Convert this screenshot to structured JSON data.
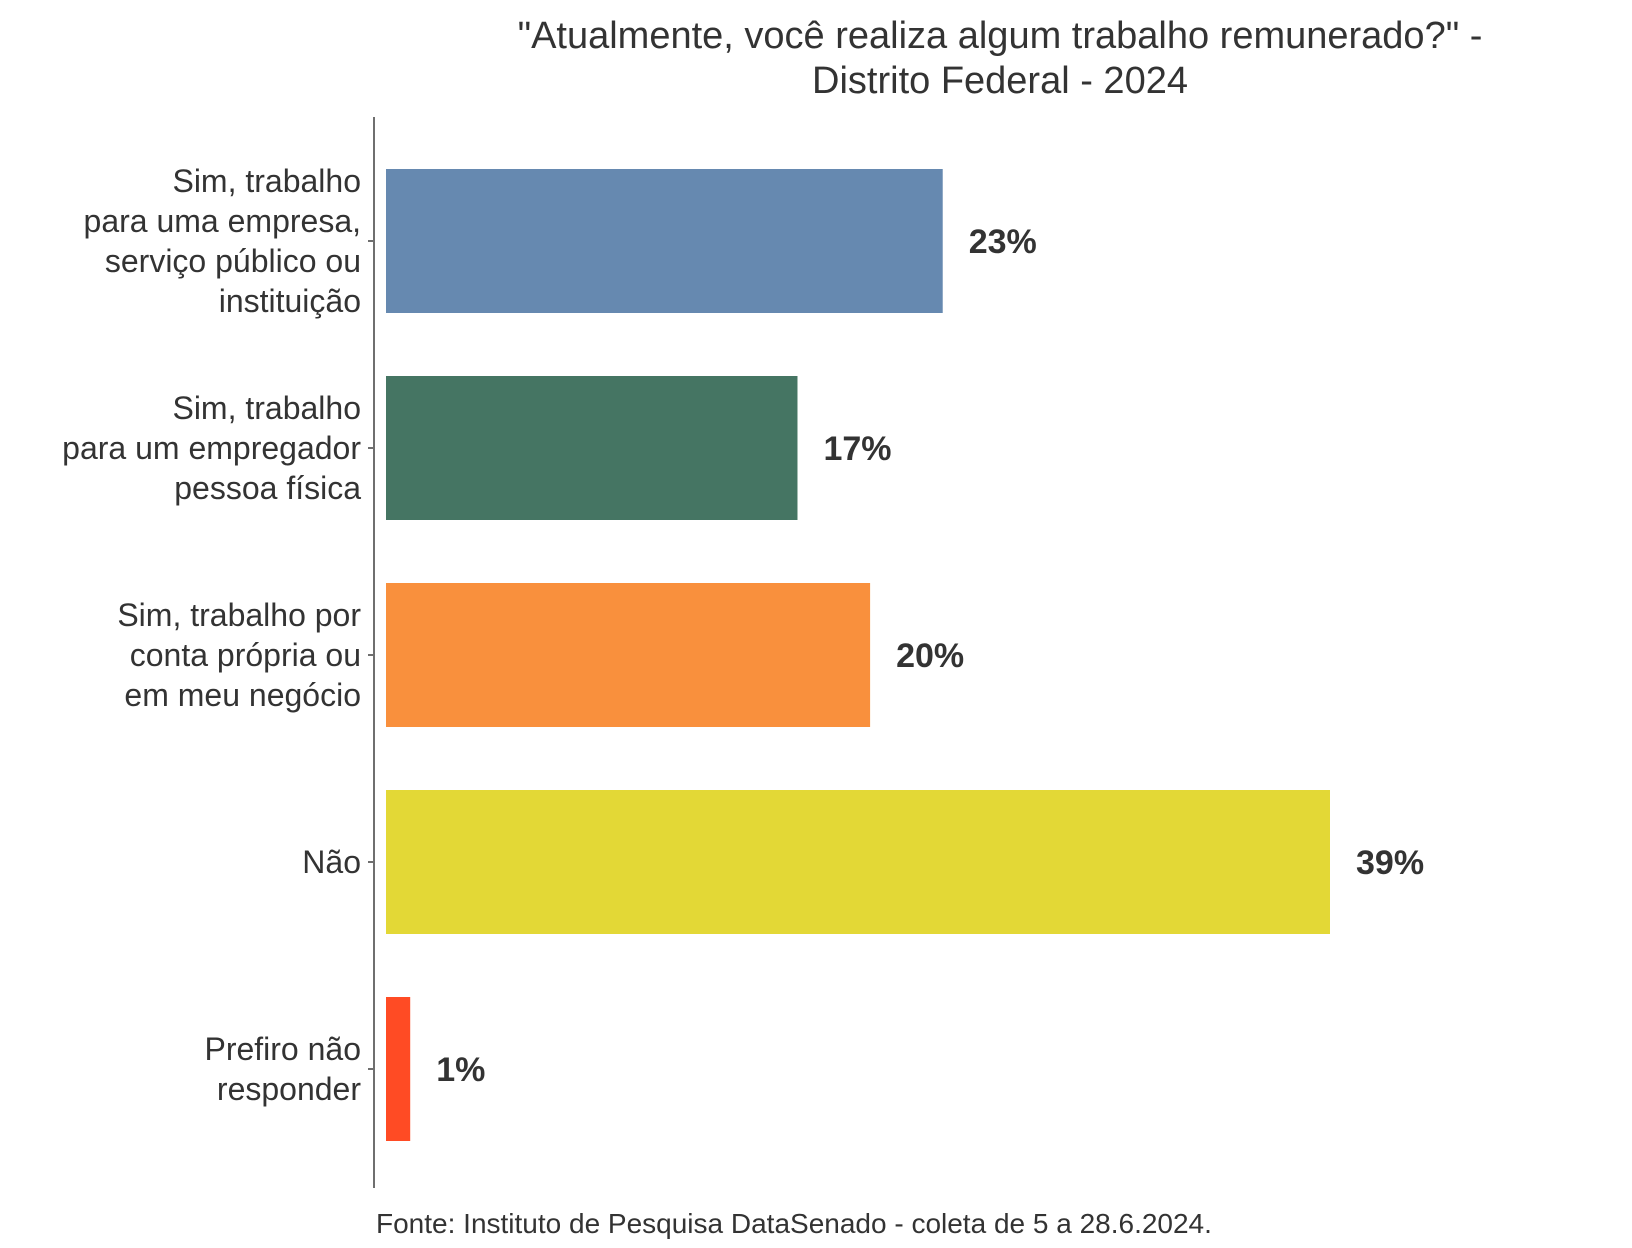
{
  "chart_data": {
    "type": "bar",
    "orientation": "horizontal",
    "title_lines": [
      "\"Atualmente, você realiza algum trabalho remunerado?\" -",
      "Distrito Federal - 2024"
    ],
    "categories": [
      [
        "Sim, trabalho",
        "para uma empresa,",
        "serviço público ou",
        "instituição"
      ],
      [
        "Sim, trabalho",
        "para um empregador",
        "pessoa física"
      ],
      [
        "Sim, trabalho por",
        "conta própria ou",
        "em meu negócio"
      ],
      [
        "Não"
      ],
      [
        "Prefiro não",
        "responder"
      ]
    ],
    "values": [
      23,
      17,
      20,
      39,
      1
    ],
    "value_labels": [
      "23%",
      "17%",
      "20%",
      "39%",
      "1%"
    ],
    "colors": [
      "#6689B0",
      "#457563",
      "#F9903D",
      "#E3D836",
      "#FF4B24"
    ],
    "xlim": [
      0,
      39
    ],
    "xlabel": "",
    "ylabel": "",
    "grid": false,
    "source": "Fonte: Instituto de Pesquisa DataSenado - coleta de 5 a 28.6.2024."
  }
}
